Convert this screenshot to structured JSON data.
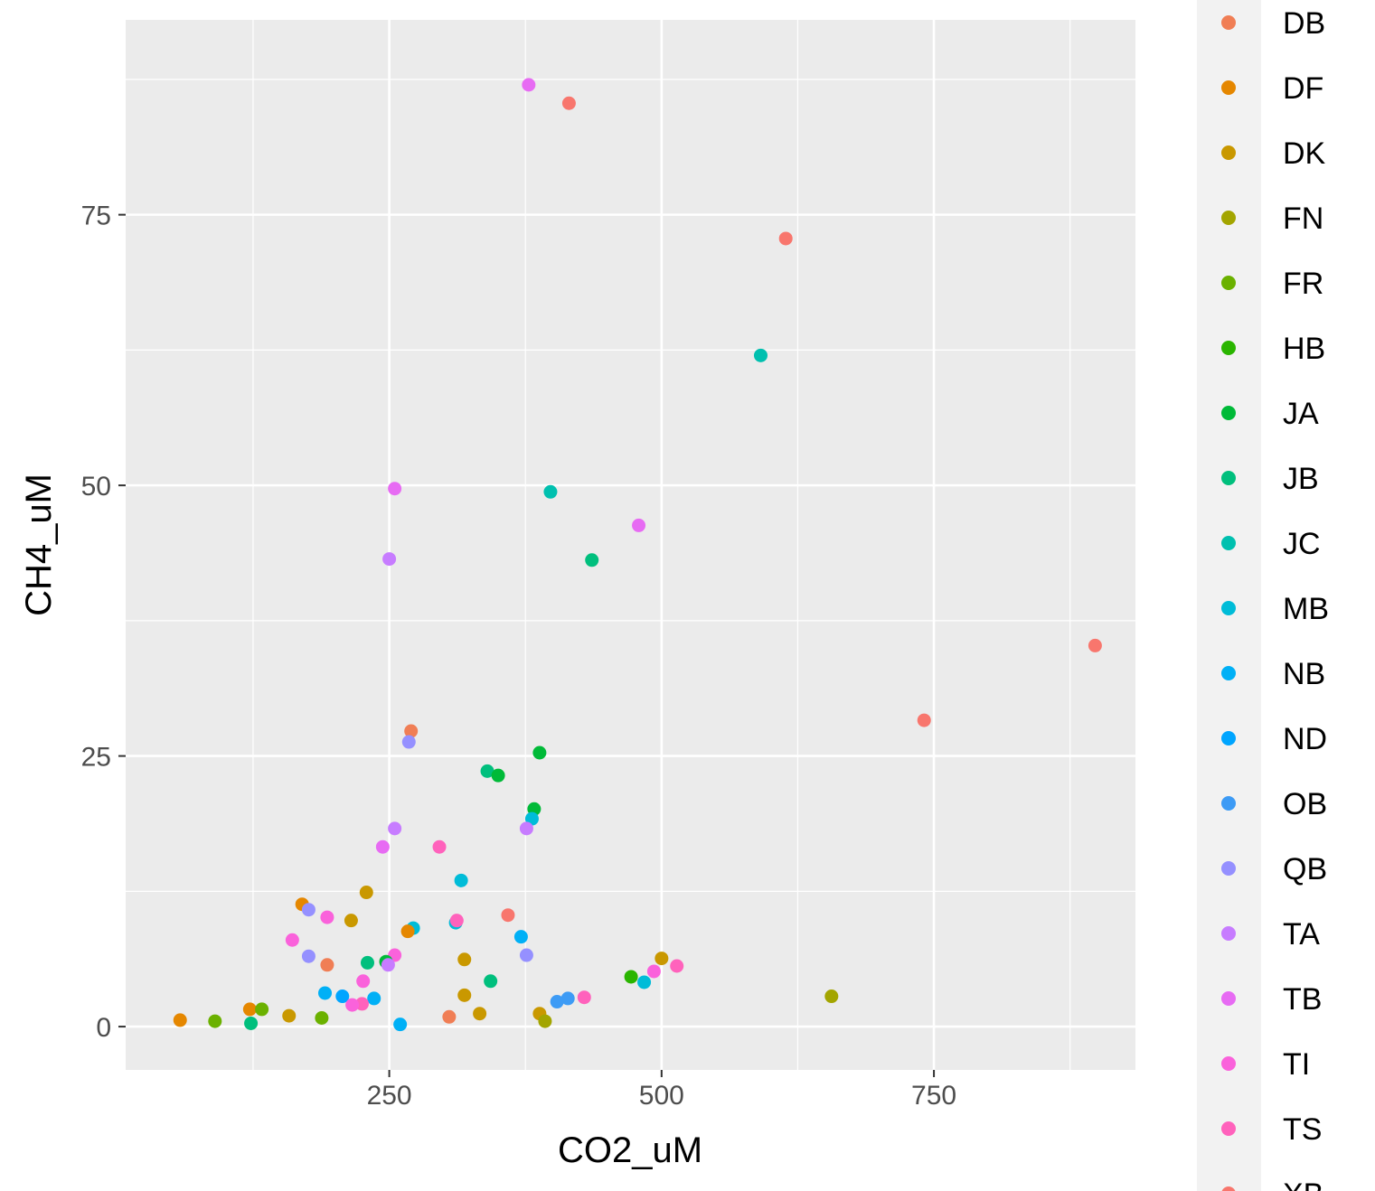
{
  "chart_data": {
    "type": "scatter",
    "xlabel": "CO2_uM",
    "ylabel": "CH4_uM",
    "xlim": [
      8,
      935
    ],
    "ylim": [
      -4,
      93
    ],
    "x_ticks": [
      250,
      500,
      750
    ],
    "y_ticks": [
      0,
      25,
      50,
      75
    ],
    "x_minor": [
      125,
      375,
      625,
      875
    ],
    "y_minor": [
      12.5,
      37.5,
      62.5,
      87.5
    ],
    "grid": true,
    "legend_position": "right",
    "legend_entries": [
      {
        "label": "DB",
        "color": "#F07E55"
      },
      {
        "label": "DF",
        "color": "#E58700"
      },
      {
        "label": "DK",
        "color": "#C99800"
      },
      {
        "label": "FN",
        "color": "#A3A500"
      },
      {
        "label": "FR",
        "color": "#6BB100"
      },
      {
        "label": "HB",
        "color": "#2AB500"
      },
      {
        "label": "JA",
        "color": "#00BA38"
      },
      {
        "label": "JB",
        "color": "#00BF7D"
      },
      {
        "label": "JC",
        "color": "#00C0AF"
      },
      {
        "label": "MB",
        "color": "#00BCD8"
      },
      {
        "label": "NB",
        "color": "#00B0F6"
      },
      {
        "label": "ND",
        "color": "#00A5FF"
      },
      {
        "label": "OB",
        "color": "#3D9BF5"
      },
      {
        "label": "QB",
        "color": "#9590FF"
      },
      {
        "label": "TA",
        "color": "#C77CFF"
      },
      {
        "label": "TB",
        "color": "#E76BF3"
      },
      {
        "label": "TI",
        "color": "#FA62DB"
      },
      {
        "label": "TS",
        "color": "#FF62BC"
      },
      {
        "label": "XB",
        "color": "#F8766D"
      }
    ],
    "points": [
      {
        "x": 378,
        "y": 87.0,
        "color": "#E76BF3"
      },
      {
        "x": 415,
        "y": 85.3,
        "color": "#F8766D"
      },
      {
        "x": 614,
        "y": 72.8,
        "color": "#F8766D"
      },
      {
        "x": 591,
        "y": 62.0,
        "color": "#00C0AF"
      },
      {
        "x": 255,
        "y": 49.7,
        "color": "#E76BF3"
      },
      {
        "x": 398,
        "y": 49.4,
        "color": "#00C0AF"
      },
      {
        "x": 479,
        "y": 46.3,
        "color": "#E76BF3"
      },
      {
        "x": 250,
        "y": 43.2,
        "color": "#C77CFF"
      },
      {
        "x": 436,
        "y": 43.1,
        "color": "#00BF7D"
      },
      {
        "x": 898,
        "y": 35.2,
        "color": "#F8766D"
      },
      {
        "x": 741,
        "y": 28.3,
        "color": "#F8766D"
      },
      {
        "x": 270,
        "y": 27.3,
        "color": "#F07E55"
      },
      {
        "x": 268,
        "y": 26.3,
        "color": "#9590FF"
      },
      {
        "x": 388,
        "y": 25.3,
        "color": "#00BA38"
      },
      {
        "x": 340,
        "y": 23.6,
        "color": "#00BF7D"
      },
      {
        "x": 350,
        "y": 23.2,
        "color": "#00BA38"
      },
      {
        "x": 383,
        "y": 20.1,
        "color": "#00BA38"
      },
      {
        "x": 381,
        "y": 19.2,
        "color": "#00BCD8"
      },
      {
        "x": 255,
        "y": 18.3,
        "color": "#C77CFF"
      },
      {
        "x": 376,
        "y": 18.3,
        "color": "#C77CFF"
      },
      {
        "x": 244,
        "y": 16.6,
        "color": "#E76BF3"
      },
      {
        "x": 296,
        "y": 16.6,
        "color": "#FF62BC"
      },
      {
        "x": 316,
        "y": 13.5,
        "color": "#00BCD8"
      },
      {
        "x": 229,
        "y": 12.4,
        "color": "#C99800"
      },
      {
        "x": 170,
        "y": 11.3,
        "color": "#E58700"
      },
      {
        "x": 176,
        "y": 10.8,
        "color": "#9590FF"
      },
      {
        "x": 359,
        "y": 10.3,
        "color": "#F8766D"
      },
      {
        "x": 193,
        "y": 10.1,
        "color": "#FA62DB"
      },
      {
        "x": 215,
        "y": 9.8,
        "color": "#C99800"
      },
      {
        "x": 311,
        "y": 9.6,
        "color": "#00BCD8"
      },
      {
        "x": 312,
        "y": 9.8,
        "color": "#FF62BC"
      },
      {
        "x": 272,
        "y": 9.1,
        "color": "#00BCD8"
      },
      {
        "x": 267,
        "y": 8.8,
        "color": "#E58700"
      },
      {
        "x": 161,
        "y": 8.0,
        "color": "#FA62DB"
      },
      {
        "x": 371,
        "y": 8.3,
        "color": "#00B0F6"
      },
      {
        "x": 176,
        "y": 6.5,
        "color": "#9590FF"
      },
      {
        "x": 376,
        "y": 6.6,
        "color": "#9590FF"
      },
      {
        "x": 255,
        "y": 6.6,
        "color": "#FA62DB"
      },
      {
        "x": 319,
        "y": 6.2,
        "color": "#C99800"
      },
      {
        "x": 500,
        "y": 6.3,
        "color": "#C99800"
      },
      {
        "x": 230,
        "y": 5.9,
        "color": "#00BF7D"
      },
      {
        "x": 247,
        "y": 6.0,
        "color": "#00BA38"
      },
      {
        "x": 249,
        "y": 5.7,
        "color": "#C77CFF"
      },
      {
        "x": 193,
        "y": 5.7,
        "color": "#F07E55"
      },
      {
        "x": 514,
        "y": 5.6,
        "color": "#FF62BC"
      },
      {
        "x": 493,
        "y": 5.1,
        "color": "#FA62DB"
      },
      {
        "x": 472,
        "y": 4.6,
        "color": "#2AB500"
      },
      {
        "x": 484,
        "y": 4.1,
        "color": "#00BCD8"
      },
      {
        "x": 343,
        "y": 4.2,
        "color": "#00BF7D"
      },
      {
        "x": 226,
        "y": 4.2,
        "color": "#FA62DB"
      },
      {
        "x": 191,
        "y": 3.1,
        "color": "#00B0F6"
      },
      {
        "x": 207,
        "y": 2.8,
        "color": "#00A5FF"
      },
      {
        "x": 236,
        "y": 2.6,
        "color": "#00B0F6"
      },
      {
        "x": 319,
        "y": 2.9,
        "color": "#C99800"
      },
      {
        "x": 656,
        "y": 2.8,
        "color": "#A3A500"
      },
      {
        "x": 429,
        "y": 2.7,
        "color": "#FF62BC"
      },
      {
        "x": 414,
        "y": 2.6,
        "color": "#3D9BF5"
      },
      {
        "x": 404,
        "y": 2.3,
        "color": "#3D9BF5"
      },
      {
        "x": 225,
        "y": 2.1,
        "color": "#FF62BC"
      },
      {
        "x": 216,
        "y": 2.0,
        "color": "#FA62DB"
      },
      {
        "x": 122,
        "y": 1.6,
        "color": "#E58700"
      },
      {
        "x": 133,
        "y": 1.6,
        "color": "#6BB100"
      },
      {
        "x": 333,
        "y": 1.2,
        "color": "#C99800"
      },
      {
        "x": 388,
        "y": 1.2,
        "color": "#C99800"
      },
      {
        "x": 158,
        "y": 1.0,
        "color": "#C99800"
      },
      {
        "x": 305,
        "y": 0.9,
        "color": "#F07E55"
      },
      {
        "x": 188,
        "y": 0.8,
        "color": "#6BB100"
      },
      {
        "x": 58,
        "y": 0.6,
        "color": "#E58700"
      },
      {
        "x": 90,
        "y": 0.5,
        "color": "#6BB100"
      },
      {
        "x": 393,
        "y": 0.5,
        "color": "#A3A500"
      },
      {
        "x": 123,
        "y": 0.3,
        "color": "#00BF7D"
      },
      {
        "x": 260,
        "y": 0.2,
        "color": "#00B0F6"
      }
    ]
  }
}
